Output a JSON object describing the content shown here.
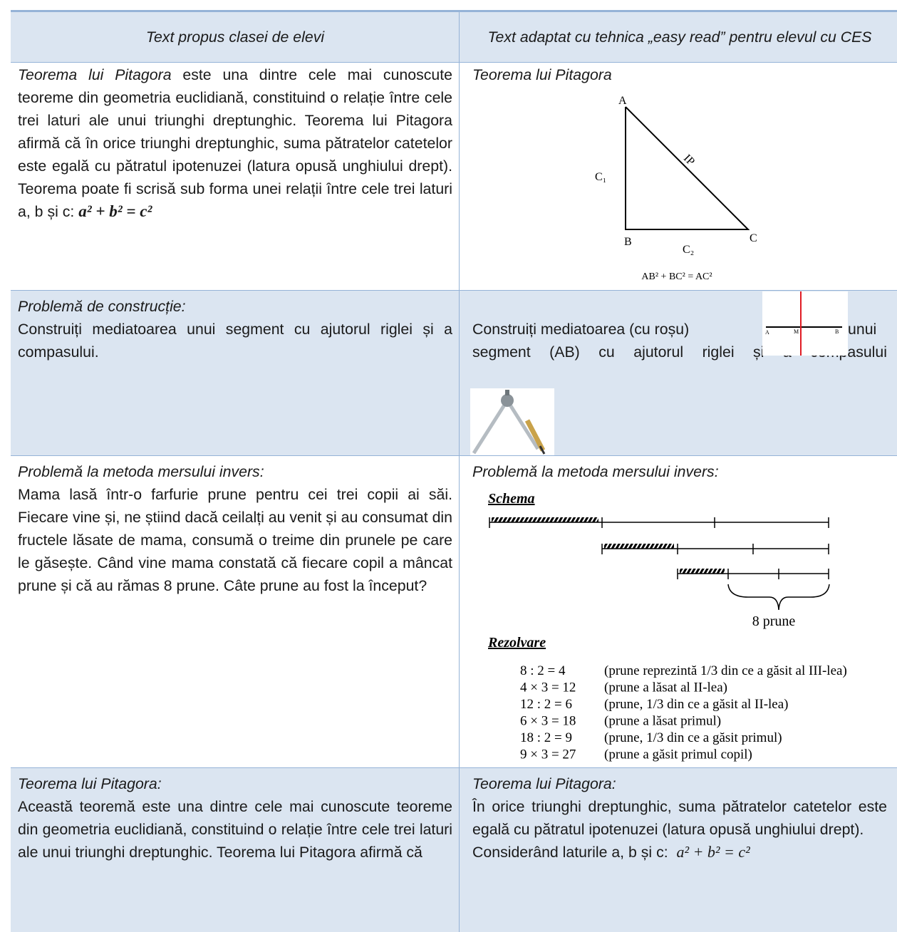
{
  "table": {
    "header": [
      "Text propus clasei de elevi",
      "Text adaptat cu tehnica „easy read” pentru elevul cu CES"
    ],
    "rows": [
      {
        "left": {
          "title": "Teorema lui Pitagora",
          "text": " este una dintre cele mai cunoscute teoreme din geometria euclidiană, constituind o relație între cele trei laturi ale unui triunghi dreptunghic. Teorema lui Pitagora afirmă că în orice triunghi dreptunghic, suma pătratelor catetelor este egală cu pătratul ipotenuzei (latura opusă unghiului drept). Teorema poate fi scrisă sub forma unei relații între cele trei laturi a, b și c: ",
          "formula": "a² + b² = c²"
        },
        "right": {
          "title": "Teorema lui Pitagora",
          "figure": {
            "a": "A",
            "b": "B",
            "c": "C",
            "c1": "C₁",
            "ip": "IP",
            "c2": "C₂",
            "formula": "AB² + BC² = AC²"
          }
        }
      },
      {
        "left": {
          "title": "Problemă de construcție:",
          "text": "Construiți mediatoarea unui segment cu ajutorul riglei și a compasului."
        },
        "right": {
          "text_before": "Construiți mediatoarea (cu roșu)",
          "figure": {
            "a": "A",
            "m": "M",
            "b": "B"
          },
          "text_after": "unui segment (AB) cu ajutorul riglei și a compasului"
        }
      },
      {
        "left": {
          "title": "Problemă la metoda mersului invers:",
          "text": "Mama lasă într-o farfurie prune pentru cei trei copii ai săi. Fiecare vine și, ne știind dacă ceilalți au venit și au consumat din fructele lăsate de mama, consumă o treime din prunele pe care le găsește. Când vine mama constată că fiecare copil a mâncat prune și că au rămas 8 prune. Câte prune au fost la început?"
        },
        "right": {
          "title": "Problemă la metoda mersului invers:",
          "schema": {
            "title": "Schema",
            "label": "8 prune"
          },
          "solution": {
            "title": "Rezolvare",
            "steps": [
              [
                "8 : 2 = 4",
                "(prune reprezintă 1/3 din ce a găsit al III-lea)"
              ],
              [
                "4 × 3 = 12",
                "(prune a lăsat al II-lea)"
              ],
              [
                "12 : 2 = 6",
                "(prune, 1/3 din ce a găsit al II-lea)"
              ],
              [
                "6 × 3 = 18",
                "(prune a lăsat primul)"
              ],
              [
                "18 : 2 = 9",
                "(prune, 1/3 din ce a găsit primul)"
              ],
              [
                "9 × 3 = 27",
                "(prune a găsit primul copil)"
              ]
            ]
          }
        }
      },
      {
        "left": {
          "title": "Teorema lui Pitagora:",
          "text": "Această teoremă este una dintre cele mai cunoscute teoreme din geometria euclidiană, constituind o relație între cele trei laturi ale unui triunghi dreptunghic. Teorema lui Pitagora afirmă că"
        },
        "right": {
          "title": "Teorema lui Pitagora:",
          "text": "În orice triunghi dreptunghic, suma pătratelor catetelor este egală cu pătratul ipotenuzei (latura opusă unghiului drept).",
          "formula_lead": "Considerând laturile a, b și c:",
          "formula": "a² + b² = c²"
        }
      }
    ]
  }
}
